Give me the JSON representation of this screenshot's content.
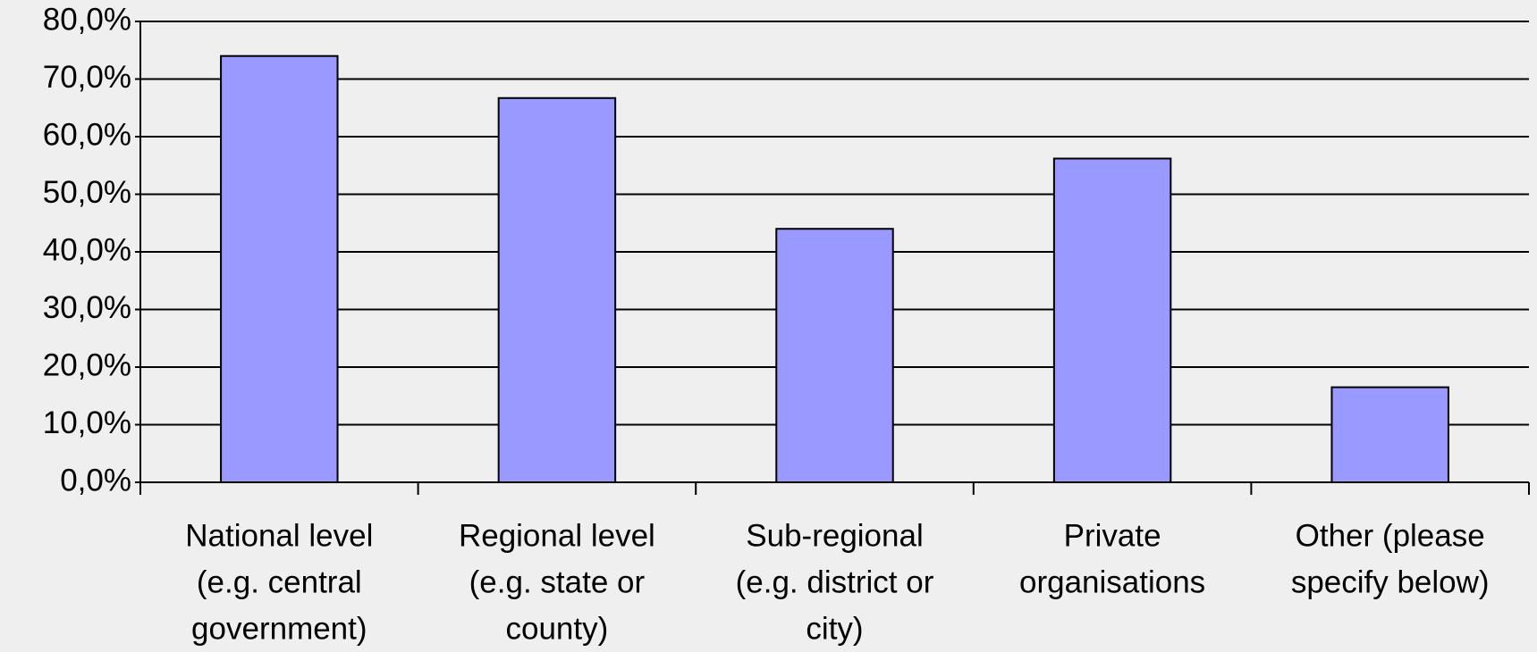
{
  "chart_data": {
    "type": "bar",
    "categories": [
      [
        "National level",
        "(e.g. central",
        "government)"
      ],
      [
        "Regional level",
        "(e.g. state or",
        "county)"
      ],
      [
        "Sub-regional",
        "(e.g. district or",
        "city)"
      ],
      [
        "Private",
        "organisations"
      ],
      [
        "Other (please",
        "specify below)"
      ]
    ],
    "values": [
      74.0,
      66.7,
      44.0,
      56.2,
      16.5
    ],
    "color": "#9999ff",
    "ylim": [
      0,
      80
    ],
    "yticks": [
      {
        "value": 0,
        "label": "0,0%"
      },
      {
        "value": 10,
        "label": "10,0%"
      },
      {
        "value": 20,
        "label": "20,0%"
      },
      {
        "value": 30,
        "label": "30,0%"
      },
      {
        "value": 40,
        "label": "40,0%"
      },
      {
        "value": 50,
        "label": "50,0%"
      },
      {
        "value": 60,
        "label": "60,0%"
      },
      {
        "value": 70,
        "label": "70,0%"
      },
      {
        "value": 80,
        "label": "80,0%"
      }
    ],
    "grid": true
  }
}
